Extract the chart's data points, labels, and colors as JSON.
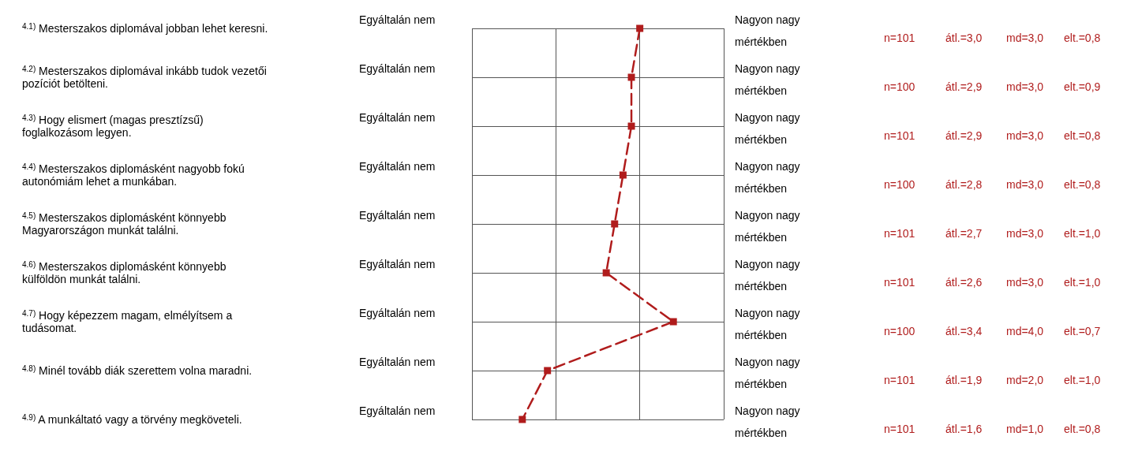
{
  "chart_data": {
    "type": "line",
    "orientation": "horizontal",
    "categories": [
      "4.1) Mesterszakos diplomával jobban lehet keresni.",
      "4.2) Mesterszakos diplomával inkább tudok vezetői pozíciót betölteni.",
      "4.3) Hogy elismert (magas presztízsű) foglalkozásom legyen.",
      "4.4) Mesterszakos diplomásként nagyobb fokú autonómiám lehet a munkában.",
      "4.5) Mesterszakos diplomásként könnyebb Magyarországon munkát találni.",
      "4.6) Mesterszakos diplomásként könnyebb külföldön munkát találni.",
      "4.7) Hogy képezzem magam, elmélyítsem a tudásomat.",
      "4.8) Minél tovább diák szerettem volna maradni.",
      "4.9) A munkáltató vagy a törvény megköveteli."
    ],
    "series": [
      {
        "color": "#b01c1c",
        "values": [
          3.0,
          2.9,
          2.9,
          2.8,
          2.7,
          2.6,
          3.4,
          1.9,
          1.6
        ],
        "value_labels": [
          "átl.=3,0",
          "átl.=2,9",
          "átl.=2,9",
          "átl.=2,8",
          "átl.=2,7",
          "átl.=2,6",
          "átl.=3,4",
          "átl.=1,9",
          "átl.=1,6"
        ]
      }
    ],
    "xlim": [
      1,
      4
    ],
    "xticks": [
      {
        "value": 1,
        "label": null
      },
      {
        "value": 2,
        "label": null
      },
      {
        "value": 3,
        "label": null
      },
      {
        "value": 4,
        "label": null
      }
    ],
    "grid": true,
    "marker": "square",
    "line_style": "dashed",
    "annotations": [
      "Egyáltalán nem",
      "Nagyon nagy mértékben",
      "n=101",
      "md=3,0",
      "elt.=0,8",
      "Egyáltalán nem",
      "Nagyon nagy mértékben",
      "n=100",
      "md=3,0",
      "elt.=0,9",
      "Egyáltalán nem",
      "Nagyon nagy mértékben",
      "n=101",
      "md=3,0",
      "elt.=0,8",
      "Egyáltalán nem",
      "Nagyon nagy mértékben",
      "n=100",
      "md=3,0",
      "elt.=0,8",
      "Egyáltalán nem",
      "Nagyon nagy mértékben",
      "n=101",
      "md=3,0",
      "elt.=1,0",
      "Egyáltalán nem",
      "Nagyon nagy mértékben",
      "n=101",
      "md=3,0",
      "elt.=1,0",
      "Egyáltalán nem",
      "Nagyon nagy mértékben",
      "n=100",
      "md=4,0",
      "elt.=0,7",
      "Egyáltalán nem",
      "Nagyon nagy mértékben",
      "n=101",
      "md=2,0",
      "elt.=1,0",
      "Egyáltalán nem",
      "Nagyon nagy mértékben",
      "n=101",
      "md=1,0",
      "elt.=0,8"
    ]
  }
}
